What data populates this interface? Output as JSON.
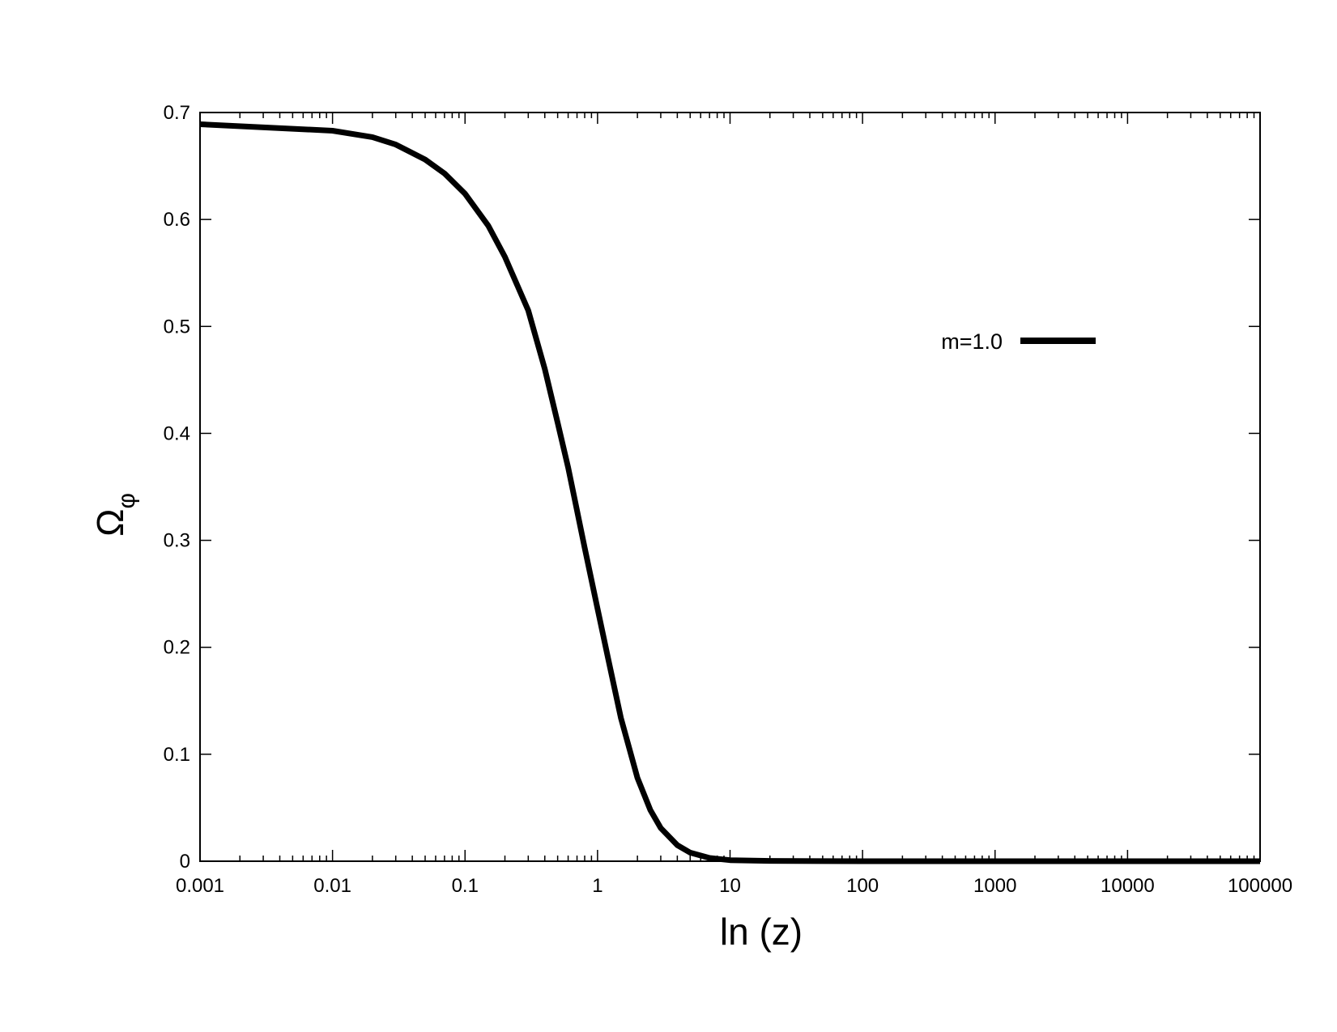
{
  "chart_data": {
    "type": "line",
    "title": "",
    "xlabel": "ln (z)",
    "ylabel_main": "Ω",
    "ylabel_sub": "φ",
    "x_scale": "log",
    "xlim": [
      0.001,
      100000
    ],
    "ylim": [
      0,
      0.7
    ],
    "x_ticks": [
      0.001,
      0.01,
      0.1,
      1,
      10,
      100,
      1000,
      10000,
      100000
    ],
    "x_tick_labels": [
      "0.001",
      "0.01",
      "0.1",
      "1",
      "10",
      "100",
      "1000",
      "10000",
      "100000"
    ],
    "y_ticks": [
      0,
      0.1,
      0.2,
      0.3,
      0.4,
      0.5,
      0.6,
      0.7
    ],
    "y_tick_labels": [
      "0",
      "0.1",
      "0.2",
      "0.3",
      "0.4",
      "0.5",
      "0.6",
      "0.7"
    ],
    "grid": false,
    "legend_position": "upper-right",
    "series": [
      {
        "name": "m=1.0",
        "color": "#000000",
        "x": [
          0.001,
          0.01,
          0.02,
          0.03,
          0.05,
          0.07,
          0.1,
          0.15,
          0.2,
          0.3,
          0.4,
          0.5,
          0.6,
          0.7,
          0.8,
          1.0,
          1.2,
          1.5,
          2.0,
          2.5,
          3.0,
          4.0,
          5.0,
          7.0,
          10,
          20,
          50,
          100,
          1000,
          10000,
          100000
        ],
        "y": [
          0.689,
          0.683,
          0.677,
          0.67,
          0.656,
          0.643,
          0.624,
          0.594,
          0.565,
          0.515,
          0.46,
          0.41,
          0.368,
          0.328,
          0.293,
          0.236,
          0.19,
          0.134,
          0.078,
          0.048,
          0.031,
          0.015,
          0.008,
          0.003,
          0.001,
          0.0003,
          0.0001,
          0.0,
          0.0,
          0.0,
          0.0
        ]
      }
    ]
  }
}
